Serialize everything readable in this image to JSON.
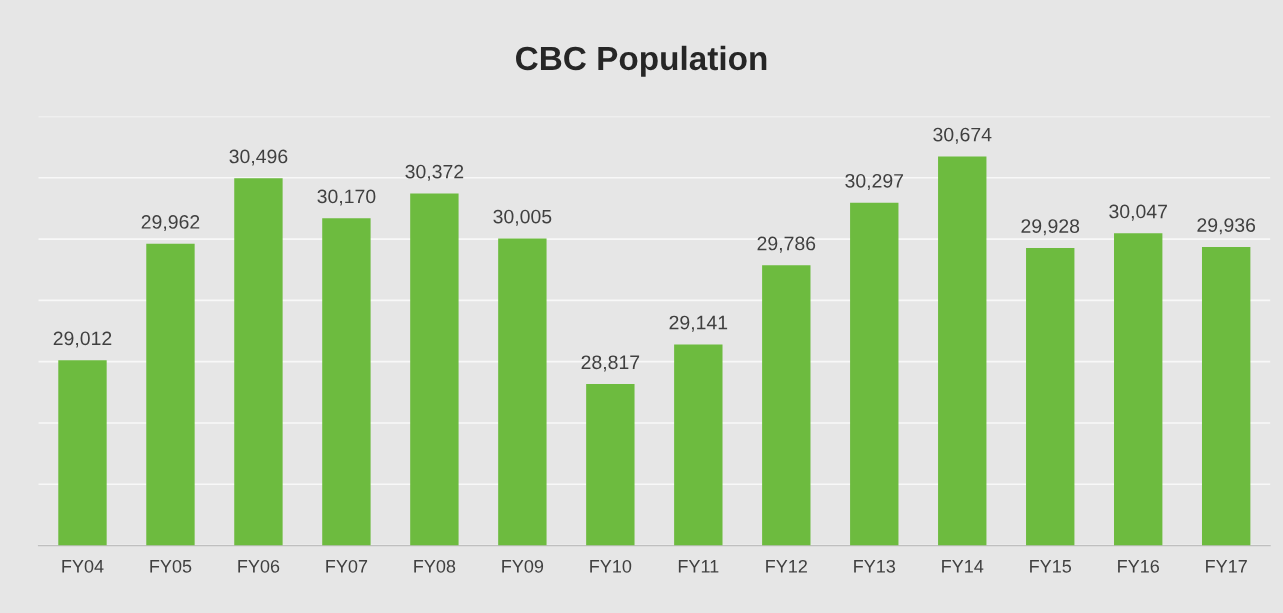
{
  "chart_data": {
    "type": "bar",
    "title": "CBC Population",
    "categories": [
      "FY04",
      "FY05",
      "FY06",
      "FY07",
      "FY08",
      "FY09",
      "FY10",
      "FY11",
      "FY12",
      "FY13",
      "FY14",
      "FY15",
      "FY16",
      "FY17"
    ],
    "values": [
      29012,
      29962,
      30496,
      30170,
      30372,
      30005,
      28817,
      29141,
      29786,
      30297,
      30674,
      29928,
      30047,
      29936
    ],
    "value_labels": [
      "29,012",
      "29,962",
      "30,496",
      "30,170",
      "30,372",
      "30,005",
      "28,817",
      "29,141",
      "29,786",
      "30,297",
      "30,674",
      "29,928",
      "30,047",
      "29,936"
    ],
    "color": "#6dbb3f",
    "ylim": [
      27500,
      31000
    ],
    "yticks": [
      {
        "value": 27500,
        "label": null
      },
      {
        "value": 28000,
        "label": null
      },
      {
        "value": 28500,
        "label": null
      },
      {
        "value": 29000,
        "label": null
      },
      {
        "value": 29500,
        "label": null
      },
      {
        "value": 30000,
        "label": null
      },
      {
        "value": 30500,
        "label": null
      },
      {
        "value": 31000,
        "label": null
      }
    ],
    "tick_labels": "x",
    "grid": "y",
    "legend": false
  }
}
